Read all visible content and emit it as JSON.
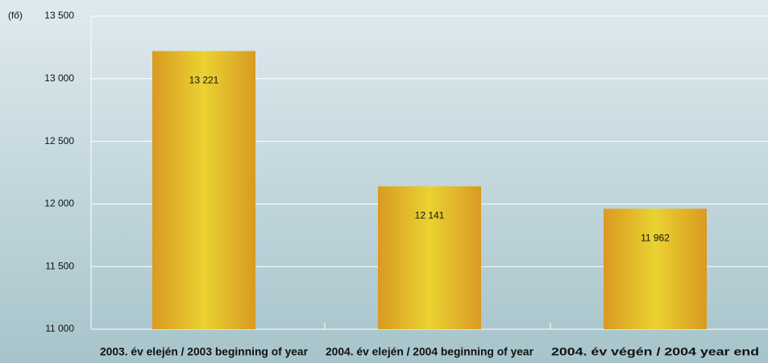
{
  "chart_data": {
    "type": "bar",
    "ylabel": "(fő)",
    "categories": [
      "2003. év elején / 2003 beginning of year",
      "2004. év elején / 2004 beginning of year",
      "2004. év végén / 2004 year end"
    ],
    "values": [
      13221,
      12141,
      11962
    ],
    "value_labels": [
      "13 221",
      "12 141",
      "11 962"
    ],
    "color": "#e3b82a",
    "ylim": [
      11000,
      13500
    ],
    "yticks": [
      {
        "value": 11000,
        "label": "11 000"
      },
      {
        "value": 11500,
        "label": "11 500"
      },
      {
        "value": 12000,
        "label": "12 000"
      },
      {
        "value": 12500,
        "label": "12 500"
      },
      {
        "value": 13000,
        "label": "13 000"
      },
      {
        "value": 13500,
        "label": "13 500"
      }
    ],
    "grid": true
  }
}
